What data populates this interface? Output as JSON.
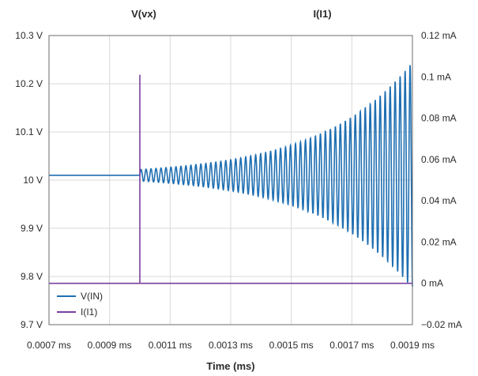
{
  "chart_data": {
    "type": "line",
    "top_labels": {
      "left": "V(vx)",
      "right": "I(I1)"
    },
    "xlabel": "Time (ms)",
    "xlim": [
      0.0007,
      0.0019
    ],
    "xticks": [
      {
        "value": 0.0007,
        "label": "0.0007 ms"
      },
      {
        "value": 0.0009,
        "label": "0.0009 ms"
      },
      {
        "value": 0.0011,
        "label": "0.0011 ms"
      },
      {
        "value": 0.0013,
        "label": "0.0013 ms"
      },
      {
        "value": 0.0015,
        "label": "0.0015 ms"
      },
      {
        "value": 0.0017,
        "label": "0.0017 ms"
      },
      {
        "value": 0.0019,
        "label": "0.0019 ms"
      }
    ],
    "y_left": {
      "lim": [
        9.7,
        10.3
      ],
      "ticks": [
        {
          "value": 10.3,
          "label": "10.3 V"
        },
        {
          "value": 10.2,
          "label": "10.2 V"
        },
        {
          "value": 10.1,
          "label": "10.1 V"
        },
        {
          "value": 10.0,
          "label": "10 V"
        },
        {
          "value": 9.9,
          "label": "9.9 V"
        },
        {
          "value": 9.8,
          "label": "9.8 V"
        },
        {
          "value": 9.7,
          "label": "9.7 V"
        }
      ]
    },
    "y_right": {
      "lim": [
        -0.02,
        0.12
      ],
      "ticks": [
        {
          "value": 0.12,
          "label": "0.12 mA"
        },
        {
          "value": 0.1,
          "label": "0.1 mA"
        },
        {
          "value": 0.08,
          "label": "0.08 mA"
        },
        {
          "value": 0.06,
          "label": "0.06 mA"
        },
        {
          "value": 0.04,
          "label": "0.04 mA"
        },
        {
          "value": 0.02,
          "label": "0.02 mA"
        },
        {
          "value": 0.0,
          "label": "0 mA"
        },
        {
          "value": -0.02,
          "label": "−0.02 mA"
        }
      ]
    },
    "grid": true,
    "legend_position": "bottom-left",
    "series": [
      {
        "name": "V(IN)",
        "axis": "left",
        "color": "#1f6fb2",
        "baseline_value": 10.01,
        "step_time": 0.001,
        "oscillation_frequency_mhz": 60.8,
        "amplitude_start": 0.012,
        "amplitude_end": 0.235,
        "end_time": 0.0019
      },
      {
        "name": "I(I1)",
        "axis": "right",
        "color": "#7b3f9e",
        "points": [
          {
            "x": 0.0007,
            "y": 0.0
          },
          {
            "x": 0.001,
            "y": 0.0
          },
          {
            "x": 0.001,
            "y": 0.101
          },
          {
            "x": 0.001,
            "y": 0.0
          },
          {
            "x": 0.0019,
            "y": 0.0
          }
        ]
      }
    ]
  }
}
